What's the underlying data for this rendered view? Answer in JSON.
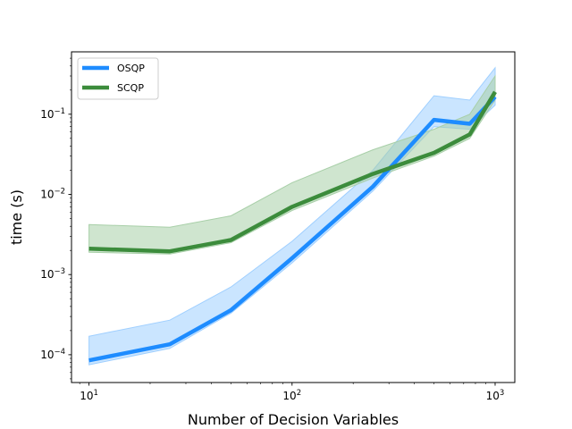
{
  "chart_data": {
    "type": "line",
    "title": "",
    "xlabel": "Number of Decision Variables",
    "ylabel": "time (s)",
    "xscale": "log",
    "yscale": "log",
    "xlim": [
      8.2,
      1250
    ],
    "ylim": [
      4.5e-05,
      0.6
    ],
    "grid": false,
    "legend": "top-left",
    "x_ticks": [
      {
        "value": 10,
        "base": "10",
        "exp": "1"
      },
      {
        "value": 100,
        "base": "10",
        "exp": "2"
      },
      {
        "value": 1000,
        "base": "10",
        "exp": "3"
      }
    ],
    "y_ticks": [
      {
        "value": 0.0001,
        "base": "10",
        "exp": "−4"
      },
      {
        "value": 0.001,
        "base": "10",
        "exp": "−3"
      },
      {
        "value": 0.01,
        "base": "10",
        "exp": "−2"
      },
      {
        "value": 0.1,
        "base": "10",
        "exp": "−1"
      }
    ],
    "x": [
      10,
      25,
      50,
      100,
      250,
      500,
      750,
      1000
    ],
    "series": [
      {
        "name": "OSQP",
        "color": "#1e8cff",
        "band_color": "#9fcfff",
        "values": [
          8.5e-05,
          0.000135,
          0.00036,
          0.0016,
          0.0125,
          0.085,
          0.076,
          0.165
        ],
        "lower": [
          7.5e-05,
          0.00012,
          0.00033,
          0.0014,
          0.011,
          0.07,
          0.065,
          0.13
        ],
        "upper": [
          0.00017,
          0.00027,
          0.0007,
          0.0026,
          0.02,
          0.17,
          0.15,
          0.38
        ]
      },
      {
        "name": "SCQP",
        "color": "#3c8c3c",
        "band_color": "#a8cfa8",
        "values": [
          0.0021,
          0.00195,
          0.0027,
          0.007,
          0.018,
          0.033,
          0.056,
          0.19
        ],
        "lower": [
          0.0019,
          0.0018,
          0.0025,
          0.0063,
          0.016,
          0.03,
          0.05,
          0.15
        ],
        "upper": [
          0.0042,
          0.0039,
          0.0054,
          0.014,
          0.036,
          0.065,
          0.1,
          0.3
        ]
      }
    ]
  }
}
